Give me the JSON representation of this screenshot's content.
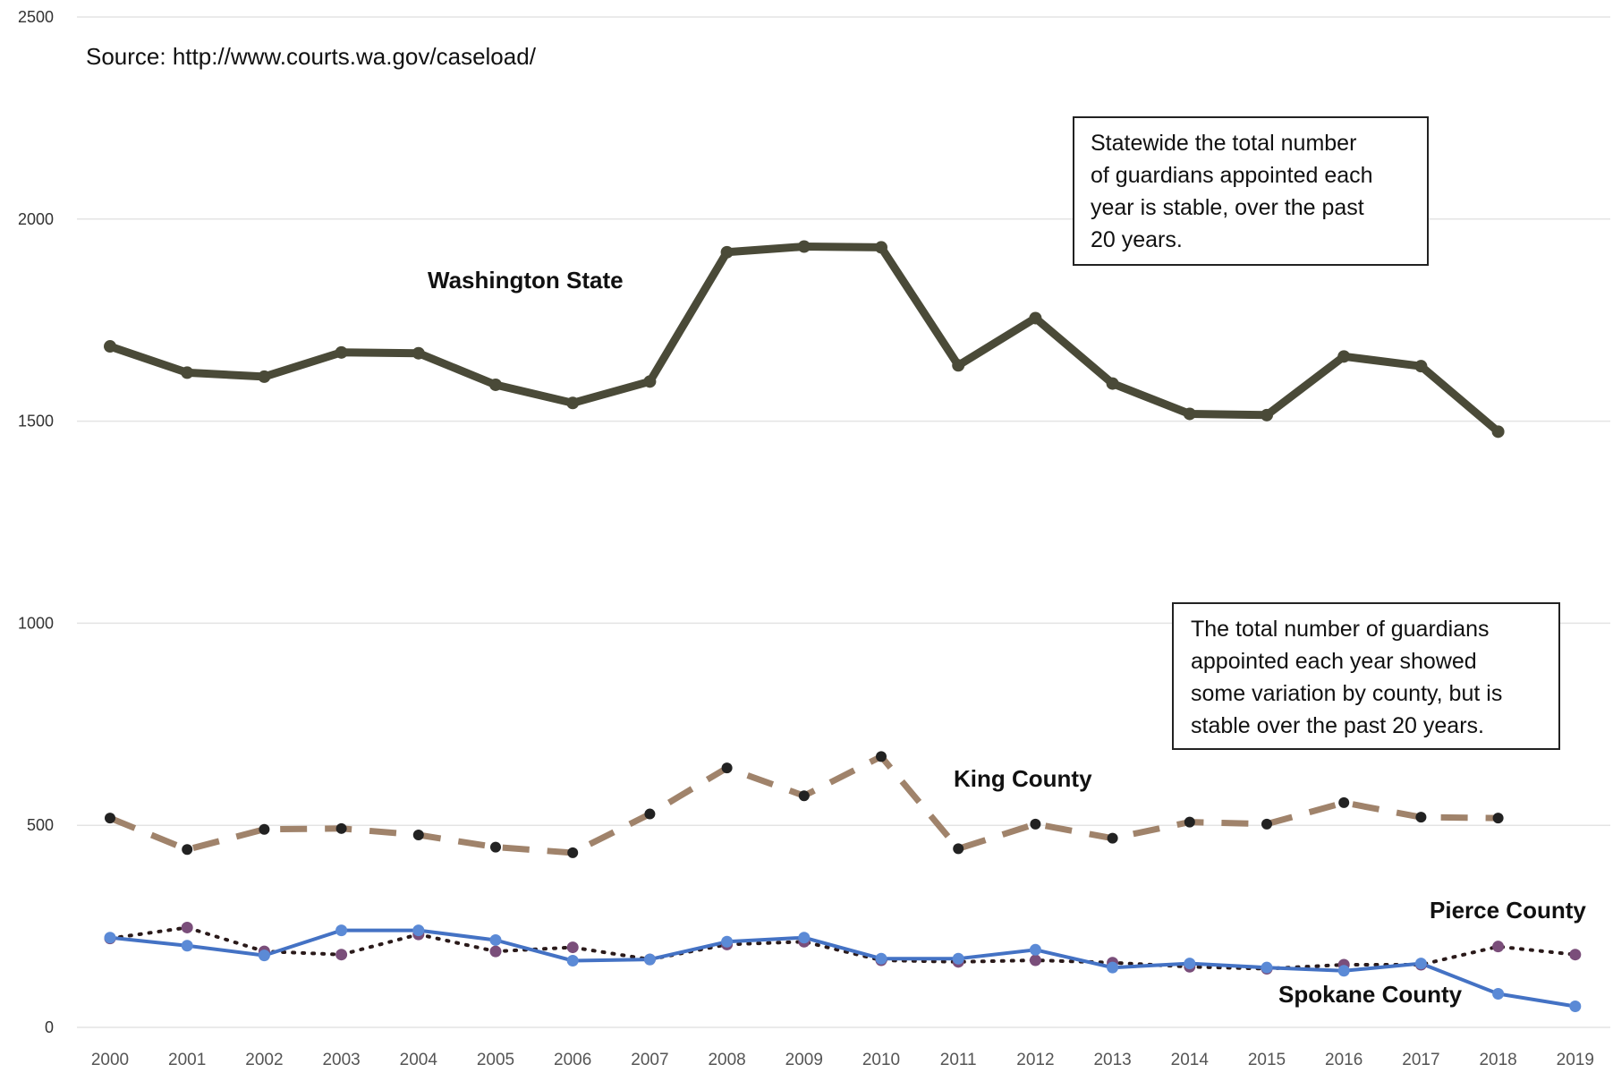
{
  "source": "Source: http://www.courts.wa.gov/caseload/",
  "notes": {
    "statewide": [
      "Statewide the total number",
      "of guardians appointed each",
      "year is stable, over the past",
      "20 years."
    ],
    "county": [
      "The total number of guardians",
      "appointed each year showed",
      "some variation by county, but is",
      "stable over the past  20 years."
    ]
  },
  "colors": {
    "washington": "#4a4a38",
    "king": "#a0836b",
    "king_marker": "#222222",
    "pierce": "#2a1a1a",
    "pierce_marker": "#7a4e7a",
    "spokane": "#4472c4",
    "spokane_marker": "#5b8ad6"
  },
  "chart_data": {
    "type": "line",
    "title": "",
    "xlabel": "",
    "ylabel": "",
    "ylim": [
      0,
      2500
    ],
    "yticks": [
      0,
      500,
      1000,
      1500,
      2000,
      2500
    ],
    "grid": true,
    "categories": [
      "2000",
      "2001",
      "2002",
      "2003",
      "2004",
      "2005",
      "2006",
      "2007",
      "2008",
      "2009",
      "2010",
      "2011",
      "2012",
      "2013",
      "2014",
      "2015",
      "2016",
      "2017",
      "2018",
      "2019"
    ],
    "series": [
      {
        "name": "Washington State",
        "style": "solid-thick",
        "values": [
          1685,
          1620,
          1610,
          1670,
          1668,
          1590,
          1545,
          1598,
          1918,
          1932,
          1930,
          1638,
          1755,
          1593,
          1518,
          1515,
          1660,
          1636,
          1474,
          null
        ]
      },
      {
        "name": "King County",
        "style": "dashed",
        "values": [
          518,
          440,
          490,
          492,
          476,
          446,
          432,
          528,
          642,
          573,
          670,
          442,
          503,
          468,
          508,
          503,
          556,
          520,
          518,
          null
        ]
      },
      {
        "name": "Pierce County",
        "style": "dotted",
        "values": [
          220,
          247,
          188,
          180,
          230,
          188,
          198,
          168,
          205,
          212,
          166,
          162,
          166,
          160,
          150,
          145,
          155,
          155,
          200,
          180
        ]
      },
      {
        "name": "Spokane County",
        "style": "solid",
        "values": [
          222,
          202,
          178,
          240,
          240,
          216,
          165,
          168,
          212,
          222,
          170,
          170,
          192,
          148,
          158,
          148,
          140,
          158,
          83,
          52
        ]
      }
    ]
  }
}
